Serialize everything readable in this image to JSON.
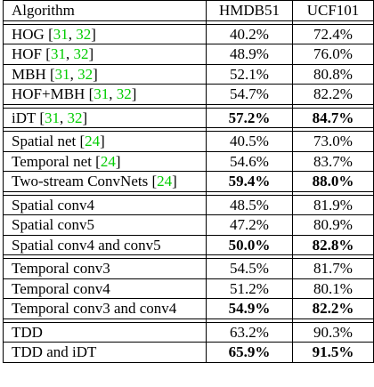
{
  "columns": [
    "Algorithm",
    "HMDB51",
    "UCF101"
  ],
  "colors": {
    "citation": "#00cc00",
    "text": "#000000",
    "border": "#000000"
  },
  "groups": [
    {
      "rows": [
        {
          "name": "HOG",
          "cites": [
            "31",
            "32"
          ],
          "hmdb": "40.2%",
          "ucf": "72.4%",
          "bold": false
        },
        {
          "name": "HOF",
          "cites": [
            "31",
            "32"
          ],
          "hmdb": "48.9%",
          "ucf": "76.0%",
          "bold": false
        },
        {
          "name": "MBH",
          "cites": [
            "31",
            "32"
          ],
          "hmdb": "52.1%",
          "ucf": "80.8%",
          "bold": false
        },
        {
          "name": "HOF+MBH",
          "cites": [
            "31",
            "32"
          ],
          "hmdb": "54.7%",
          "ucf": "82.2%",
          "bold": false
        }
      ]
    },
    {
      "rows": [
        {
          "name": "iDT",
          "cites": [
            "31",
            "32"
          ],
          "hmdb": "57.2%",
          "ucf": "84.7%",
          "bold": true
        }
      ]
    },
    {
      "rows": [
        {
          "name": "Spatial net",
          "cites": [
            "24"
          ],
          "hmdb": "40.5%",
          "ucf": "73.0%",
          "bold": false
        },
        {
          "name": "Temporal net",
          "cites": [
            "24"
          ],
          "hmdb": "54.6%",
          "ucf": "83.7%",
          "bold": false
        },
        {
          "name": "Two-stream ConvNets",
          "cites": [
            "24"
          ],
          "hmdb": "59.4%",
          "ucf": "88.0%",
          "bold": true
        }
      ]
    },
    {
      "rows": [
        {
          "name": "Spatial conv4",
          "cites": [],
          "hmdb": "48.5%",
          "ucf": "81.9%",
          "bold": false
        },
        {
          "name": "Spatial conv5",
          "cites": [],
          "hmdb": "47.2%",
          "ucf": "80.9%",
          "bold": false
        },
        {
          "name": "Spatial conv4 and conv5",
          "cites": [],
          "hmdb": "50.0%",
          "ucf": "82.8%",
          "bold": true
        }
      ]
    },
    {
      "rows": [
        {
          "name": "Temporal conv3",
          "cites": [],
          "hmdb": "54.5%",
          "ucf": "81.7%",
          "bold": false
        },
        {
          "name": "Temporal conv4",
          "cites": [],
          "hmdb": "51.2%",
          "ucf": "80.1%",
          "bold": false
        },
        {
          "name": "Temporal conv3 and conv4",
          "cites": [],
          "hmdb": "54.9%",
          "ucf": "82.2%",
          "bold": true
        }
      ]
    },
    {
      "rows": [
        {
          "name": "TDD",
          "cites": [],
          "hmdb": "63.2%",
          "ucf": "90.3%",
          "bold": false
        },
        {
          "name": "TDD and iDT",
          "cites": [],
          "hmdb": "65.9%",
          "ucf": "91.5%",
          "bold": true
        }
      ]
    }
  ]
}
